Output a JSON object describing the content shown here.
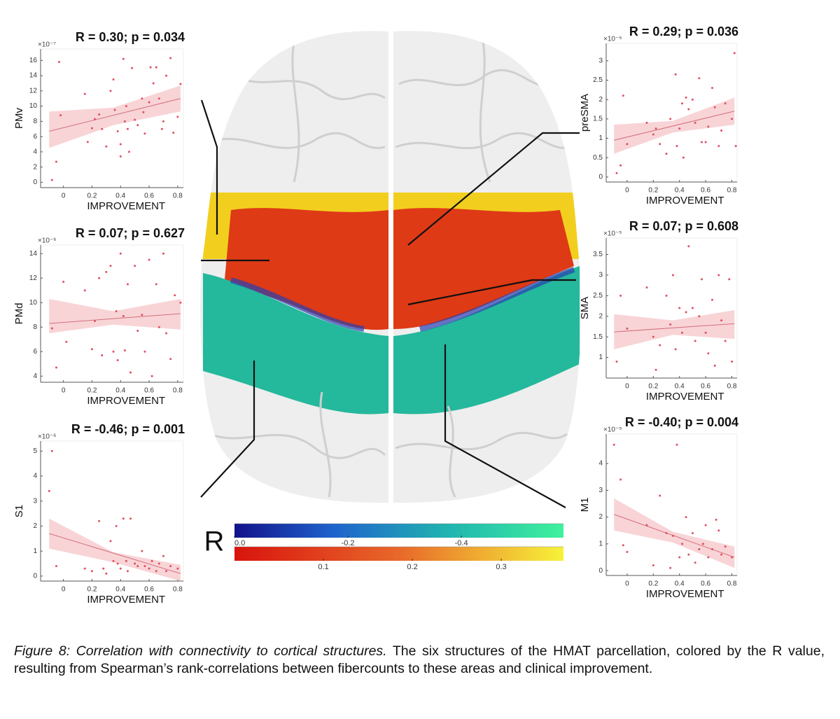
{
  "figure": {
    "panels": [
      {
        "title": "R = 0.30; p = 0.034",
        "ylabel": "PMv",
        "xlabel": "IMPROVEMENT",
        "exponent": "×10⁻⁷",
        "xlim": [
          -0.16,
          0.84
        ],
        "ylim": [
          -0.7,
          17.5
        ],
        "xticks": [
          0,
          0.2,
          0.4,
          0.6,
          0.8
        ],
        "yticks": [
          0,
          2,
          4,
          6,
          8,
          10,
          12,
          14,
          16
        ],
        "x": [
          -0.08,
          -0.05,
          -0.03,
          -0.02,
          0.15,
          0.17,
          0.2,
          0.22,
          0.25,
          0.27,
          0.3,
          0.33,
          0.35,
          0.36,
          0.38,
          0.4,
          0.4,
          0.42,
          0.43,
          0.44,
          0.45,
          0.46,
          0.48,
          0.5,
          0.52,
          0.55,
          0.56,
          0.57,
          0.6,
          0.61,
          0.63,
          0.65,
          0.67,
          0.69,
          0.7,
          0.72,
          0.75,
          0.77,
          0.8,
          0.82
        ],
        "y": [
          0.3,
          2.7,
          15.8,
          8.8,
          11.6,
          5.3,
          7.1,
          8.3,
          8.9,
          7.0,
          4.7,
          12.0,
          13.5,
          9.5,
          6.7,
          5.0,
          3.4,
          16.2,
          8.0,
          10.0,
          7.0,
          4.0,
          15.0,
          8.2,
          7.5,
          11.0,
          9.2,
          6.4,
          10.5,
          15.1,
          13.0,
          15.1,
          11.0,
          7.0,
          8.0,
          14.0,
          16.3,
          6.5,
          8.6,
          12.9
        ],
        "fit": {
          "x": [
            -0.1,
            0.82
          ],
          "y": [
            6.7,
            11.0
          ]
        },
        "band": {
          "x": [
            -0.1,
            0.35,
            0.82
          ],
          "lower": [
            4.5,
            7.5,
            9.3
          ],
          "upper": [
            9.3,
            9.8,
            12.7
          ]
        }
      },
      {
        "title": "R = 0.07; p = 0.627",
        "ylabel": "PMd",
        "xlabel": "IMPROVEMENT",
        "exponent": "×10⁻⁶",
        "xlim": [
          -0.16,
          0.84
        ],
        "ylim": [
          3.5,
          14.7
        ],
        "xticks": [
          0,
          0.2,
          0.4,
          0.6,
          0.8
        ],
        "yticks": [
          4,
          6,
          8,
          10,
          12,
          14
        ],
        "x": [
          -0.08,
          -0.05,
          0.0,
          0.02,
          0.15,
          0.2,
          0.22,
          0.25,
          0.27,
          0.3,
          0.33,
          0.35,
          0.37,
          0.38,
          0.4,
          0.42,
          0.43,
          0.45,
          0.47,
          0.5,
          0.52,
          0.55,
          0.57,
          0.6,
          0.62,
          0.65,
          0.67,
          0.7,
          0.72,
          0.75,
          0.78,
          0.82
        ],
        "y": [
          7.9,
          4.7,
          11.7,
          6.8,
          11.0,
          6.2,
          8.5,
          12.0,
          5.7,
          12.5,
          13.0,
          6.0,
          9.3,
          5.3,
          14.0,
          8.9,
          6.1,
          11.5,
          4.3,
          13.0,
          7.7,
          9.0,
          6.0,
          13.5,
          4.0,
          11.5,
          8.0,
          14.0,
          7.5,
          5.4,
          10.6,
          10.0
        ],
        "fit": {
          "x": [
            -0.1,
            0.82
          ],
          "y": [
            8.3,
            9.1
          ]
        },
        "band": {
          "x": [
            -0.1,
            0.35,
            0.82
          ],
          "lower": [
            7.5,
            8.2,
            7.8
          ],
          "upper": [
            10.3,
            9.3,
            10.3
          ]
        }
      },
      {
        "title": "R = -0.46; p = 0.001",
        "ylabel": "S1",
        "xlabel": "IMPROVEMENT",
        "exponent": "×10⁻⁶",
        "xlim": [
          -0.16,
          0.84
        ],
        "ylim": [
          -0.2,
          5.4
        ],
        "xticks": [
          0,
          0.2,
          0.4,
          0.6,
          0.8
        ],
        "yticks": [
          0,
          1,
          2,
          3,
          4,
          5
        ],
        "x": [
          -0.1,
          -0.08,
          -0.05,
          0.15,
          0.2,
          0.25,
          0.28,
          0.3,
          0.33,
          0.35,
          0.37,
          0.38,
          0.4,
          0.42,
          0.44,
          0.45,
          0.47,
          0.5,
          0.52,
          0.55,
          0.57,
          0.6,
          0.62,
          0.65,
          0.67,
          0.7,
          0.72,
          0.75,
          0.8
        ],
        "y": [
          3.4,
          5.0,
          0.4,
          0.3,
          0.2,
          2.2,
          0.3,
          0.1,
          1.4,
          0.6,
          2.0,
          0.5,
          0.3,
          2.3,
          0.6,
          0.2,
          2.3,
          0.5,
          0.4,
          1.0,
          0.4,
          0.3,
          0.6,
          0.2,
          0.5,
          0.8,
          0.2,
          0.4,
          0.3
        ],
        "fit": {
          "x": [
            -0.1,
            0.82
          ],
          "y": [
            1.7,
            0.1
          ]
        },
        "band": {
          "x": [
            -0.1,
            0.35,
            0.82
          ],
          "lower": [
            1.1,
            0.55,
            -0.2
          ],
          "upper": [
            2.3,
            0.95,
            0.45
          ]
        }
      },
      {
        "title": "R = 0.29; p = 0.036",
        "ylabel": "preSMA",
        "xlabel": "IMPROVEMENT",
        "exponent": "×10⁻⁵",
        "xlim": [
          -0.16,
          0.84
        ],
        "ylim": [
          -0.13,
          3.45
        ],
        "xticks": [
          0,
          0.2,
          0.4,
          0.6,
          0.8
        ],
        "yticks": [
          0,
          0.5,
          1,
          1.5,
          2,
          2.5,
          3
        ],
        "x": [
          -0.08,
          -0.05,
          -0.03,
          0.0,
          0.15,
          0.2,
          0.22,
          0.25,
          0.3,
          0.33,
          0.37,
          0.38,
          0.4,
          0.42,
          0.43,
          0.45,
          0.47,
          0.5,
          0.52,
          0.55,
          0.57,
          0.6,
          0.62,
          0.65,
          0.67,
          0.7,
          0.72,
          0.75,
          0.8,
          0.82,
          0.83
        ],
        "y": [
          0.1,
          0.3,
          2.1,
          0.85,
          1.4,
          1.1,
          1.25,
          0.85,
          0.6,
          1.5,
          2.65,
          0.8,
          1.25,
          1.9,
          0.5,
          2.05,
          1.75,
          2.0,
          1.4,
          2.55,
          0.9,
          0.9,
          1.3,
          2.3,
          1.8,
          0.8,
          1.2,
          1.9,
          1.5,
          3.2,
          0.8
        ],
        "fit": {
          "x": [
            -0.1,
            0.82
          ],
          "y": [
            0.95,
            1.7
          ]
        },
        "band": {
          "x": [
            -0.1,
            0.35,
            0.82
          ],
          "lower": [
            0.6,
            1.15,
            1.35
          ],
          "upper": [
            1.35,
            1.45,
            2.05
          ]
        }
      },
      {
        "title": "R = 0.07; p = 0.608",
        "ylabel": "SMA",
        "xlabel": "IMPROVEMENT",
        "exponent": "×10⁻⁵",
        "xlim": [
          -0.16,
          0.84
        ],
        "ylim": [
          0.5,
          3.9
        ],
        "xticks": [
          0,
          0.2,
          0.4,
          0.6,
          0.8
        ],
        "yticks": [
          1,
          1.5,
          2,
          2.5,
          3,
          3.5
        ],
        "x": [
          -0.08,
          -0.05,
          0.0,
          0.15,
          0.2,
          0.22,
          0.25,
          0.3,
          0.33,
          0.35,
          0.37,
          0.4,
          0.42,
          0.45,
          0.47,
          0.5,
          0.52,
          0.55,
          0.57,
          0.6,
          0.62,
          0.65,
          0.67,
          0.7,
          0.72,
          0.75,
          0.78,
          0.8
        ],
        "y": [
          0.9,
          2.5,
          1.7,
          2.7,
          1.5,
          0.7,
          1.3,
          2.5,
          1.8,
          3.0,
          1.2,
          2.2,
          1.6,
          2.1,
          3.7,
          2.2,
          1.4,
          2.0,
          2.9,
          1.6,
          1.1,
          2.4,
          0.8,
          3.0,
          1.9,
          1.4,
          2.9,
          0.9
        ],
        "fit": {
          "x": [
            -0.1,
            0.82
          ],
          "y": [
            1.62,
            1.82
          ]
        },
        "band": {
          "x": [
            -0.1,
            0.35,
            0.82
          ],
          "lower": [
            1.2,
            1.55,
            1.45
          ],
          "upper": [
            2.05,
            1.9,
            2.15
          ]
        }
      },
      {
        "title": "R = -0.40; p = 0.004",
        "ylabel": "M1",
        "xlabel": "IMPROVEMENT",
        "exponent": "×10⁻⁵",
        "xlim": [
          -0.16,
          0.84
        ],
        "ylim": [
          -0.18,
          5.1
        ],
        "xticks": [
          0,
          0.2,
          0.4,
          0.6,
          0.8
        ],
        "yticks": [
          0,
          1,
          2,
          3,
          4
        ],
        "x": [
          -0.1,
          -0.05,
          -0.03,
          0.0,
          0.15,
          0.2,
          0.25,
          0.3,
          0.33,
          0.35,
          0.38,
          0.4,
          0.42,
          0.45,
          0.47,
          0.5,
          0.52,
          0.55,
          0.58,
          0.6,
          0.62,
          0.65,
          0.68,
          0.7,
          0.72,
          0.75,
          0.8
        ],
        "y": [
          4.7,
          3.4,
          0.95,
          0.7,
          1.7,
          0.2,
          2.8,
          1.4,
          0.1,
          1.3,
          4.7,
          0.5,
          1.0,
          2.0,
          0.6,
          1.4,
          0.3,
          0.8,
          1.0,
          1.7,
          0.5,
          0.8,
          1.9,
          1.5,
          0.6,
          0.9,
          0.5
        ],
        "fit": {
          "x": [
            -0.1,
            0.82
          ],
          "y": [
            2.1,
            0.5
          ]
        },
        "band": {
          "x": [
            -0.1,
            0.35,
            0.82
          ],
          "lower": [
            1.5,
            1.05,
            0.1
          ],
          "upper": [
            2.7,
            1.45,
            0.9
          ]
        }
      }
    ],
    "colorbar": {
      "label": "R",
      "bars": [
        {
          "lim": [
            0,
            -0.58
          ],
          "ticks": [
            {
              "value": 0,
              "label": "0.0"
            },
            -0.2,
            -0.4
          ]
        },
        {
          "lim": [
            0,
            0.37
          ],
          "ticks": [
            0.1,
            0.2,
            0.3
          ]
        }
      ]
    }
  },
  "caption": {
    "label": "Figure 8: Correlation with connectivity to cortical structures.",
    "text": "The six structures of the HMAT parcellation, colored by the R value, resulting from Spearman’s rank-correlations between fibercounts to these areas and clinical improvement."
  }
}
